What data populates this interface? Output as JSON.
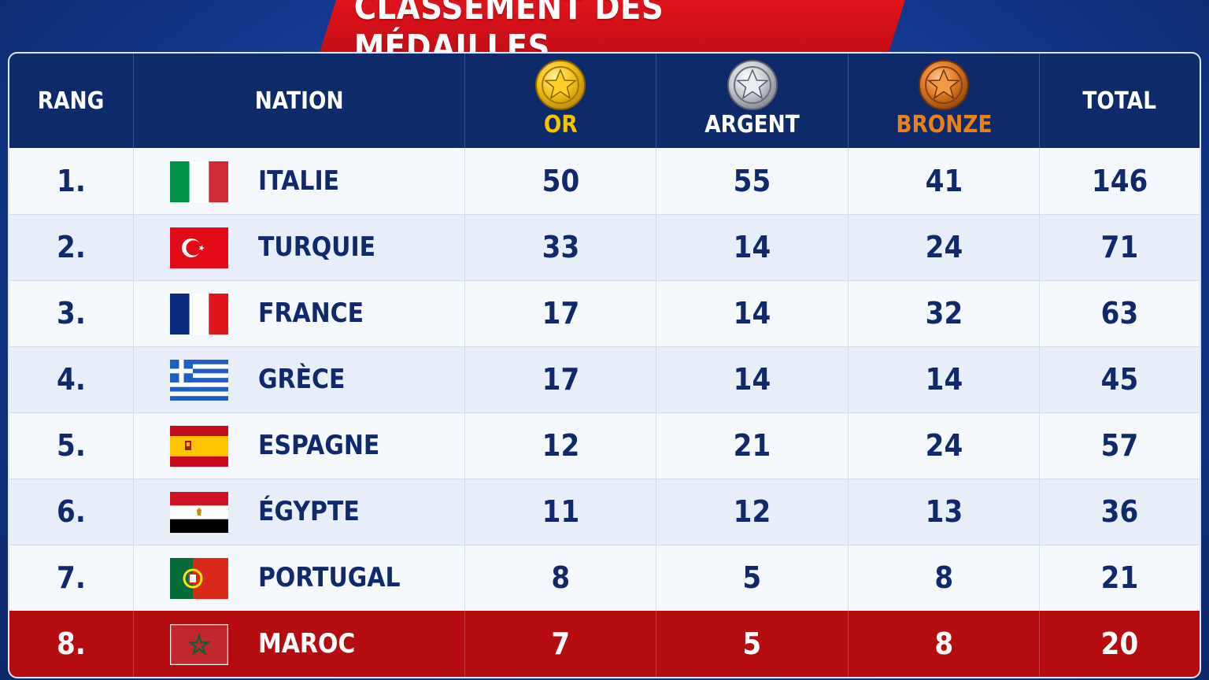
{
  "title": "CLASSEMENT DES MÉDAILLES",
  "headers": {
    "rank": "RANG",
    "nation": "NATION",
    "gold": "OR",
    "silver": "ARGENT",
    "bronze": "BRONZE",
    "total": "TOTAL"
  },
  "colors": {
    "header_bg": "#0f2a6b",
    "title_red": "#d8121a",
    "gold": "#f5c400",
    "bronze": "#e8801e",
    "highlight_row": "#b50c12",
    "text_navy": "#11286b"
  },
  "rows": [
    {
      "rank": "1.",
      "nation": "ITALIE",
      "flag": "italy-flag",
      "gold": "50",
      "silver": "55",
      "bronze": "41",
      "total": "146"
    },
    {
      "rank": "2.",
      "nation": "TURQUIE",
      "flag": "turkey-flag",
      "gold": "33",
      "silver": "14",
      "bronze": "24",
      "total": "71"
    },
    {
      "rank": "3.",
      "nation": "FRANCE",
      "flag": "france-flag",
      "gold": "17",
      "silver": "14",
      "bronze": "32",
      "total": "63"
    },
    {
      "rank": "4.",
      "nation": "GRÈCE",
      "flag": "greece-flag",
      "gold": "17",
      "silver": "14",
      "bronze": "14",
      "total": "45"
    },
    {
      "rank": "5.",
      "nation": "ESPAGNE",
      "flag": "spain-flag",
      "gold": "12",
      "silver": "21",
      "bronze": "24",
      "total": "57"
    },
    {
      "rank": "6.",
      "nation": "ÉGYPTE",
      "flag": "egypt-flag",
      "gold": "11",
      "silver": "12",
      "bronze": "13",
      "total": "36"
    },
    {
      "rank": "7.",
      "nation": "PORTUGAL",
      "flag": "portugal-flag",
      "gold": "8",
      "silver": "5",
      "bronze": "8",
      "total": "21"
    },
    {
      "rank": "8.",
      "nation": "MAROC",
      "flag": "morocco-flag",
      "gold": "7",
      "silver": "5",
      "bronze": "8",
      "total": "20",
      "highlighted": true
    }
  ]
}
